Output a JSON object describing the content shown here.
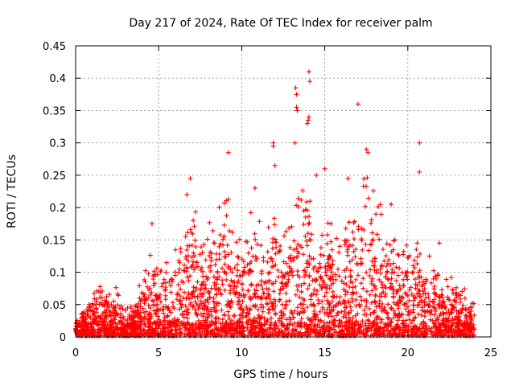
{
  "chart_data": {
    "type": "scatter",
    "title": "Day 217 of 2024, Rate Of TEC Index for receiver palm",
    "xlabel": "GPS time / hours",
    "ylabel": "ROTI / TECUs",
    "xlim": [
      0,
      25
    ],
    "ylim": [
      0,
      0.45
    ],
    "x_ticks": [
      0,
      5,
      10,
      15,
      20,
      25
    ],
    "x_tick_labels": [
      "0",
      "5",
      "10",
      "15",
      "20",
      "25"
    ],
    "y_ticks": [
      0,
      0.05,
      0.1,
      0.15,
      0.2,
      0.25,
      0.3,
      0.35,
      0.4,
      0.45
    ],
    "y_tick_labels": [
      "0",
      "0.05",
      "0.1",
      "0.15",
      "0.2",
      "0.25",
      "0.3",
      "0.35",
      "0.4",
      "0.45"
    ],
    "grid": true,
    "marker": "+",
    "marker_color": "#ff0000",
    "envelope": {
      "note": "approximate upper envelope of the point cloud (hours, TECU)",
      "x": [
        0,
        0.5,
        1,
        1.5,
        2,
        2.5,
        3,
        3.5,
        4,
        4.5,
        5,
        5.5,
        6,
        6.5,
        7,
        7.5,
        8,
        8.5,
        9,
        9.5,
        10,
        10.5,
        11,
        11.5,
        12,
        12.5,
        13,
        13.5,
        14,
        14.5,
        15,
        15.5,
        16,
        16.5,
        17,
        17.5,
        18,
        18.5,
        19,
        19.5,
        20,
        20.5,
        21,
        21.5,
        22,
        22.5,
        23,
        23.5,
        24
      ],
      "y": [
        0.03,
        0.045,
        0.07,
        0.085,
        0.065,
        0.08,
        0.04,
        0.06,
        0.1,
        0.14,
        0.12,
        0.12,
        0.15,
        0.17,
        0.22,
        0.16,
        0.18,
        0.19,
        0.24,
        0.2,
        0.17,
        0.2,
        0.18,
        0.17,
        0.23,
        0.18,
        0.22,
        0.26,
        0.25,
        0.2,
        0.19,
        0.17,
        0.19,
        0.21,
        0.25,
        0.26,
        0.22,
        0.2,
        0.19,
        0.15,
        0.14,
        0.16,
        0.13,
        0.12,
        0.12,
        0.09,
        0.11,
        0.08,
        0.05
      ]
    },
    "outliers": [
      {
        "x": 13.25,
        "y": 0.385
      },
      {
        "x": 13.3,
        "y": 0.375
      },
      {
        "x": 13.3,
        "y": 0.355
      },
      {
        "x": 13.35,
        "y": 0.35
      },
      {
        "x": 14.05,
        "y": 0.41
      },
      {
        "x": 14.1,
        "y": 0.395
      },
      {
        "x": 14.05,
        "y": 0.34
      },
      {
        "x": 13.95,
        "y": 0.33
      },
      {
        "x": 14.0,
        "y": 0.335
      },
      {
        "x": 17.0,
        "y": 0.36
      },
      {
        "x": 20.7,
        "y": 0.3
      },
      {
        "x": 20.7,
        "y": 0.255
      },
      {
        "x": 11.9,
        "y": 0.3
      },
      {
        "x": 11.9,
        "y": 0.295
      },
      {
        "x": 9.2,
        "y": 0.285
      },
      {
        "x": 17.5,
        "y": 0.29
      },
      {
        "x": 17.6,
        "y": 0.285
      },
      {
        "x": 6.9,
        "y": 0.245
      },
      {
        "x": 6.7,
        "y": 0.22
      },
      {
        "x": 15.0,
        "y": 0.26
      },
      {
        "x": 13.2,
        "y": 0.3
      },
      {
        "x": 12.0,
        "y": 0.265
      },
      {
        "x": 14.5,
        "y": 0.25
      },
      {
        "x": 16.4,
        "y": 0.245
      },
      {
        "x": 19.0,
        "y": 0.205
      },
      {
        "x": 10.8,
        "y": 0.23
      },
      {
        "x": 21.3,
        "y": 0.125
      },
      {
        "x": 21.9,
        "y": 0.145
      },
      {
        "x": 4.6,
        "y": 0.175
      }
    ]
  }
}
